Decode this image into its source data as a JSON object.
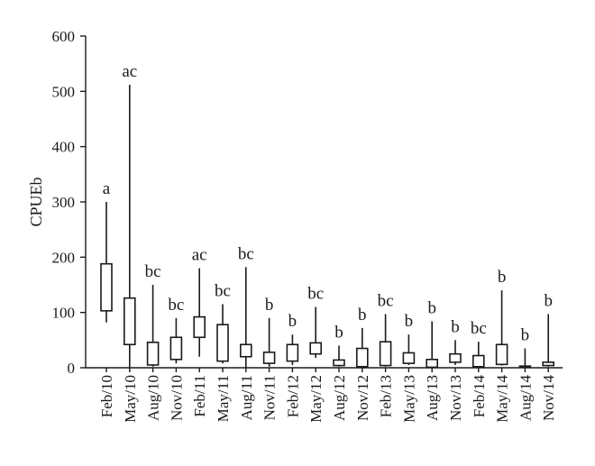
{
  "chart_data": {
    "type": "boxplot",
    "ylabel": "CPUEb",
    "ylim": [
      0,
      600
    ],
    "yticks": [
      "0",
      "100",
      "200",
      "300",
      "400",
      "500",
      "600"
    ],
    "grid": false,
    "categories": [
      "Feb/10",
      "May/10",
      "Aug/10",
      "Nov/10",
      "Feb/11",
      "May/11",
      "Aug/11",
      "Nov/11",
      "Feb/12",
      "May/12",
      "Aug/12",
      "Nov/12",
      "Feb/13",
      "May/13",
      "Aug/13",
      "Nov/13",
      "Feb/14",
      "May/14",
      "Aug/14",
      "Nov/14"
    ],
    "boxes": [
      {
        "min": 82,
        "q1": 103,
        "q3": 188,
        "max": 300,
        "letter": "a"
      },
      {
        "min": 0,
        "q1": 42,
        "q3": 126,
        "max": 512,
        "letter": "ac"
      },
      {
        "min": 2,
        "q1": 5,
        "q3": 46,
        "max": 150,
        "letter": "bc"
      },
      {
        "min": 8,
        "q1": 15,
        "q3": 55,
        "max": 90,
        "letter": "bc"
      },
      {
        "min": 20,
        "q1": 55,
        "q3": 92,
        "max": 180,
        "letter": "ac"
      },
      {
        "min": 8,
        "q1": 12,
        "q3": 78,
        "max": 115,
        "letter": "bc"
      },
      {
        "min": 0,
        "q1": 20,
        "q3": 42,
        "max": 182,
        "letter": "bc"
      },
      {
        "min": 2,
        "q1": 8,
        "q3": 28,
        "max": 90,
        "letter": "b"
      },
      {
        "min": 5,
        "q1": 12,
        "q3": 42,
        "max": 60,
        "letter": "b"
      },
      {
        "min": 18,
        "q1": 25,
        "q3": 45,
        "max": 110,
        "letter": "bc"
      },
      {
        "min": 2,
        "q1": 4,
        "q3": 14,
        "max": 40,
        "letter": "b"
      },
      {
        "min": 0,
        "q1": 2,
        "q3": 35,
        "max": 72,
        "letter": "b"
      },
      {
        "min": 2,
        "q1": 4,
        "q3": 47,
        "max": 97,
        "letter": "bc"
      },
      {
        "min": 5,
        "q1": 8,
        "q3": 27,
        "max": 60,
        "letter": "b"
      },
      {
        "min": 0,
        "q1": 1,
        "q3": 15,
        "max": 84,
        "letter": "b"
      },
      {
        "min": 5,
        "q1": 10,
        "q3": 25,
        "max": 50,
        "letter": "b"
      },
      {
        "min": 0,
        "q1": 2,
        "q3": 22,
        "max": 47,
        "letter": "bc"
      },
      {
        "min": 4,
        "q1": 6,
        "q3": 42,
        "max": 140,
        "letter": "b"
      },
      {
        "min": 0,
        "q1": 1,
        "q3": 3,
        "max": 35,
        "letter": "b"
      },
      {
        "min": 2,
        "q1": 4,
        "q3": 10,
        "max": 97,
        "letter": "b"
      }
    ]
  }
}
